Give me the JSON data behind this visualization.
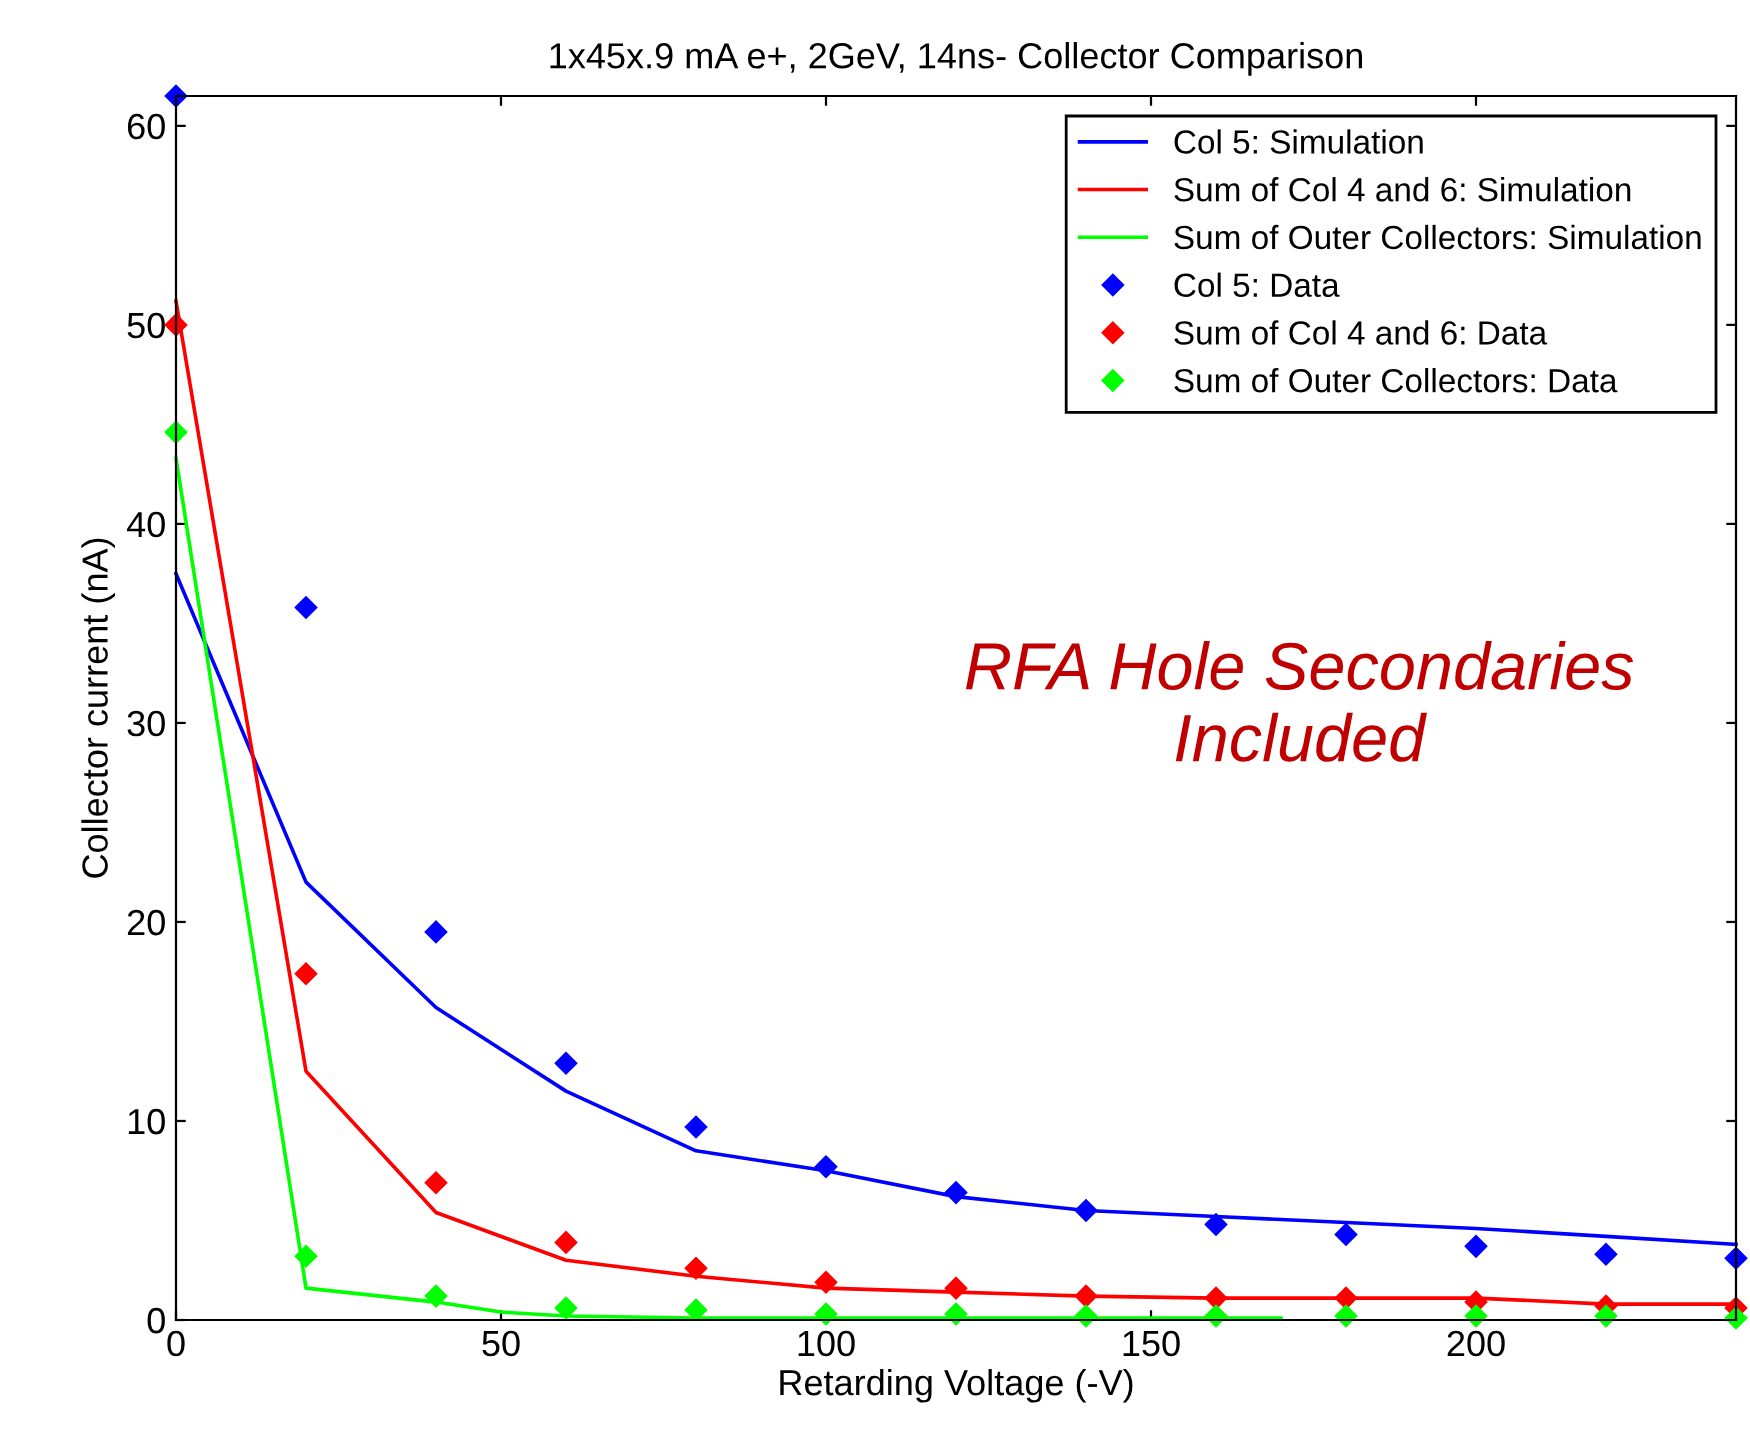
{
  "chart_data": {
    "type": "line",
    "title": "1x45x.9 mA e+, 2GeV, 14ns- Collector Comparison",
    "xlabel": "Retarding Voltage (-V)",
    "ylabel": "Collector current (nA)",
    "xlim": [
      0,
      240
    ],
    "ylim": [
      0,
      61.5
    ],
    "xticks": [
      0,
      50,
      100,
      150,
      200
    ],
    "yticks": [
      0,
      10,
      20,
      30,
      40,
      50,
      60
    ],
    "grid": false,
    "legend": "top right",
    "annotations": [
      "RFA Hole Secondaries\nIncluded"
    ],
    "series": [
      {
        "name": "Col 5: Simulation",
        "color": "#0000ff",
        "line_style": "solid",
        "marker": "none",
        "x": [
          0,
          20,
          40,
          60,
          80,
          100,
          120,
          140,
          160,
          180,
          200,
          220,
          240
        ],
        "values": [
          37.5,
          22.0,
          15.7,
          11.5,
          8.5,
          7.5,
          6.2,
          5.5,
          5.2,
          4.9,
          4.6,
          4.2,
          3.8
        ]
      },
      {
        "name": "Sum of Col 4 and 6: Simulation",
        "color": "#ff0000",
        "line_style": "solid",
        "marker": "none",
        "x": [
          0,
          20,
          40,
          60,
          80,
          100,
          120,
          140,
          160,
          180,
          200,
          220,
          240
        ],
        "values": [
          51.2,
          12.5,
          5.4,
          3.0,
          2.2,
          1.6,
          1.4,
          1.2,
          1.1,
          1.1,
          1.1,
          0.8,
          0.8
        ]
      },
      {
        "name": "Sum of Outer Collectors: Simulation",
        "color": "#00ff00",
        "line_style": "solid",
        "marker": "none",
        "x": [
          0,
          20,
          40,
          50,
          60,
          80,
          100,
          120,
          140,
          170
        ],
        "values": [
          43.3,
          1.6,
          0.9,
          0.4,
          0.2,
          0.1,
          0.1,
          0.1,
          0.1,
          0.1
        ]
      },
      {
        "name": "Col 5: Data",
        "type": "scatter",
        "color": "#0000ff",
        "marker": "diamond",
        "x": [
          0,
          20,
          40,
          60,
          80,
          100,
          120,
          140,
          160,
          180,
          200,
          220,
          240
        ],
        "values": [
          61.5,
          35.8,
          19.5,
          12.9,
          9.7,
          7.7,
          6.4,
          5.5,
          4.8,
          4.3,
          3.7,
          3.3,
          3.1
        ]
      },
      {
        "name": "Sum of Col 4 and 6: Data",
        "type": "scatter",
        "color": "#ff0000",
        "marker": "diamond",
        "x": [
          0,
          20,
          40,
          60,
          80,
          100,
          120,
          140,
          160,
          180,
          200,
          220,
          240
        ],
        "values": [
          50.0,
          17.4,
          6.9,
          3.9,
          2.6,
          1.9,
          1.6,
          1.2,
          1.1,
          1.1,
          0.9,
          0.7,
          0.6
        ]
      },
      {
        "name": "Sum of Outer Collectors: Data",
        "type": "scatter",
        "color": "#00ff00",
        "marker": "diamond",
        "x": [
          0,
          20,
          40,
          60,
          80,
          100,
          120,
          140,
          160,
          180,
          200,
          220,
          240
        ],
        "values": [
          44.6,
          3.2,
          1.2,
          0.6,
          0.5,
          0.3,
          0.3,
          0.2,
          0.2,
          0.2,
          0.2,
          0.2,
          0.1
        ]
      }
    ]
  }
}
